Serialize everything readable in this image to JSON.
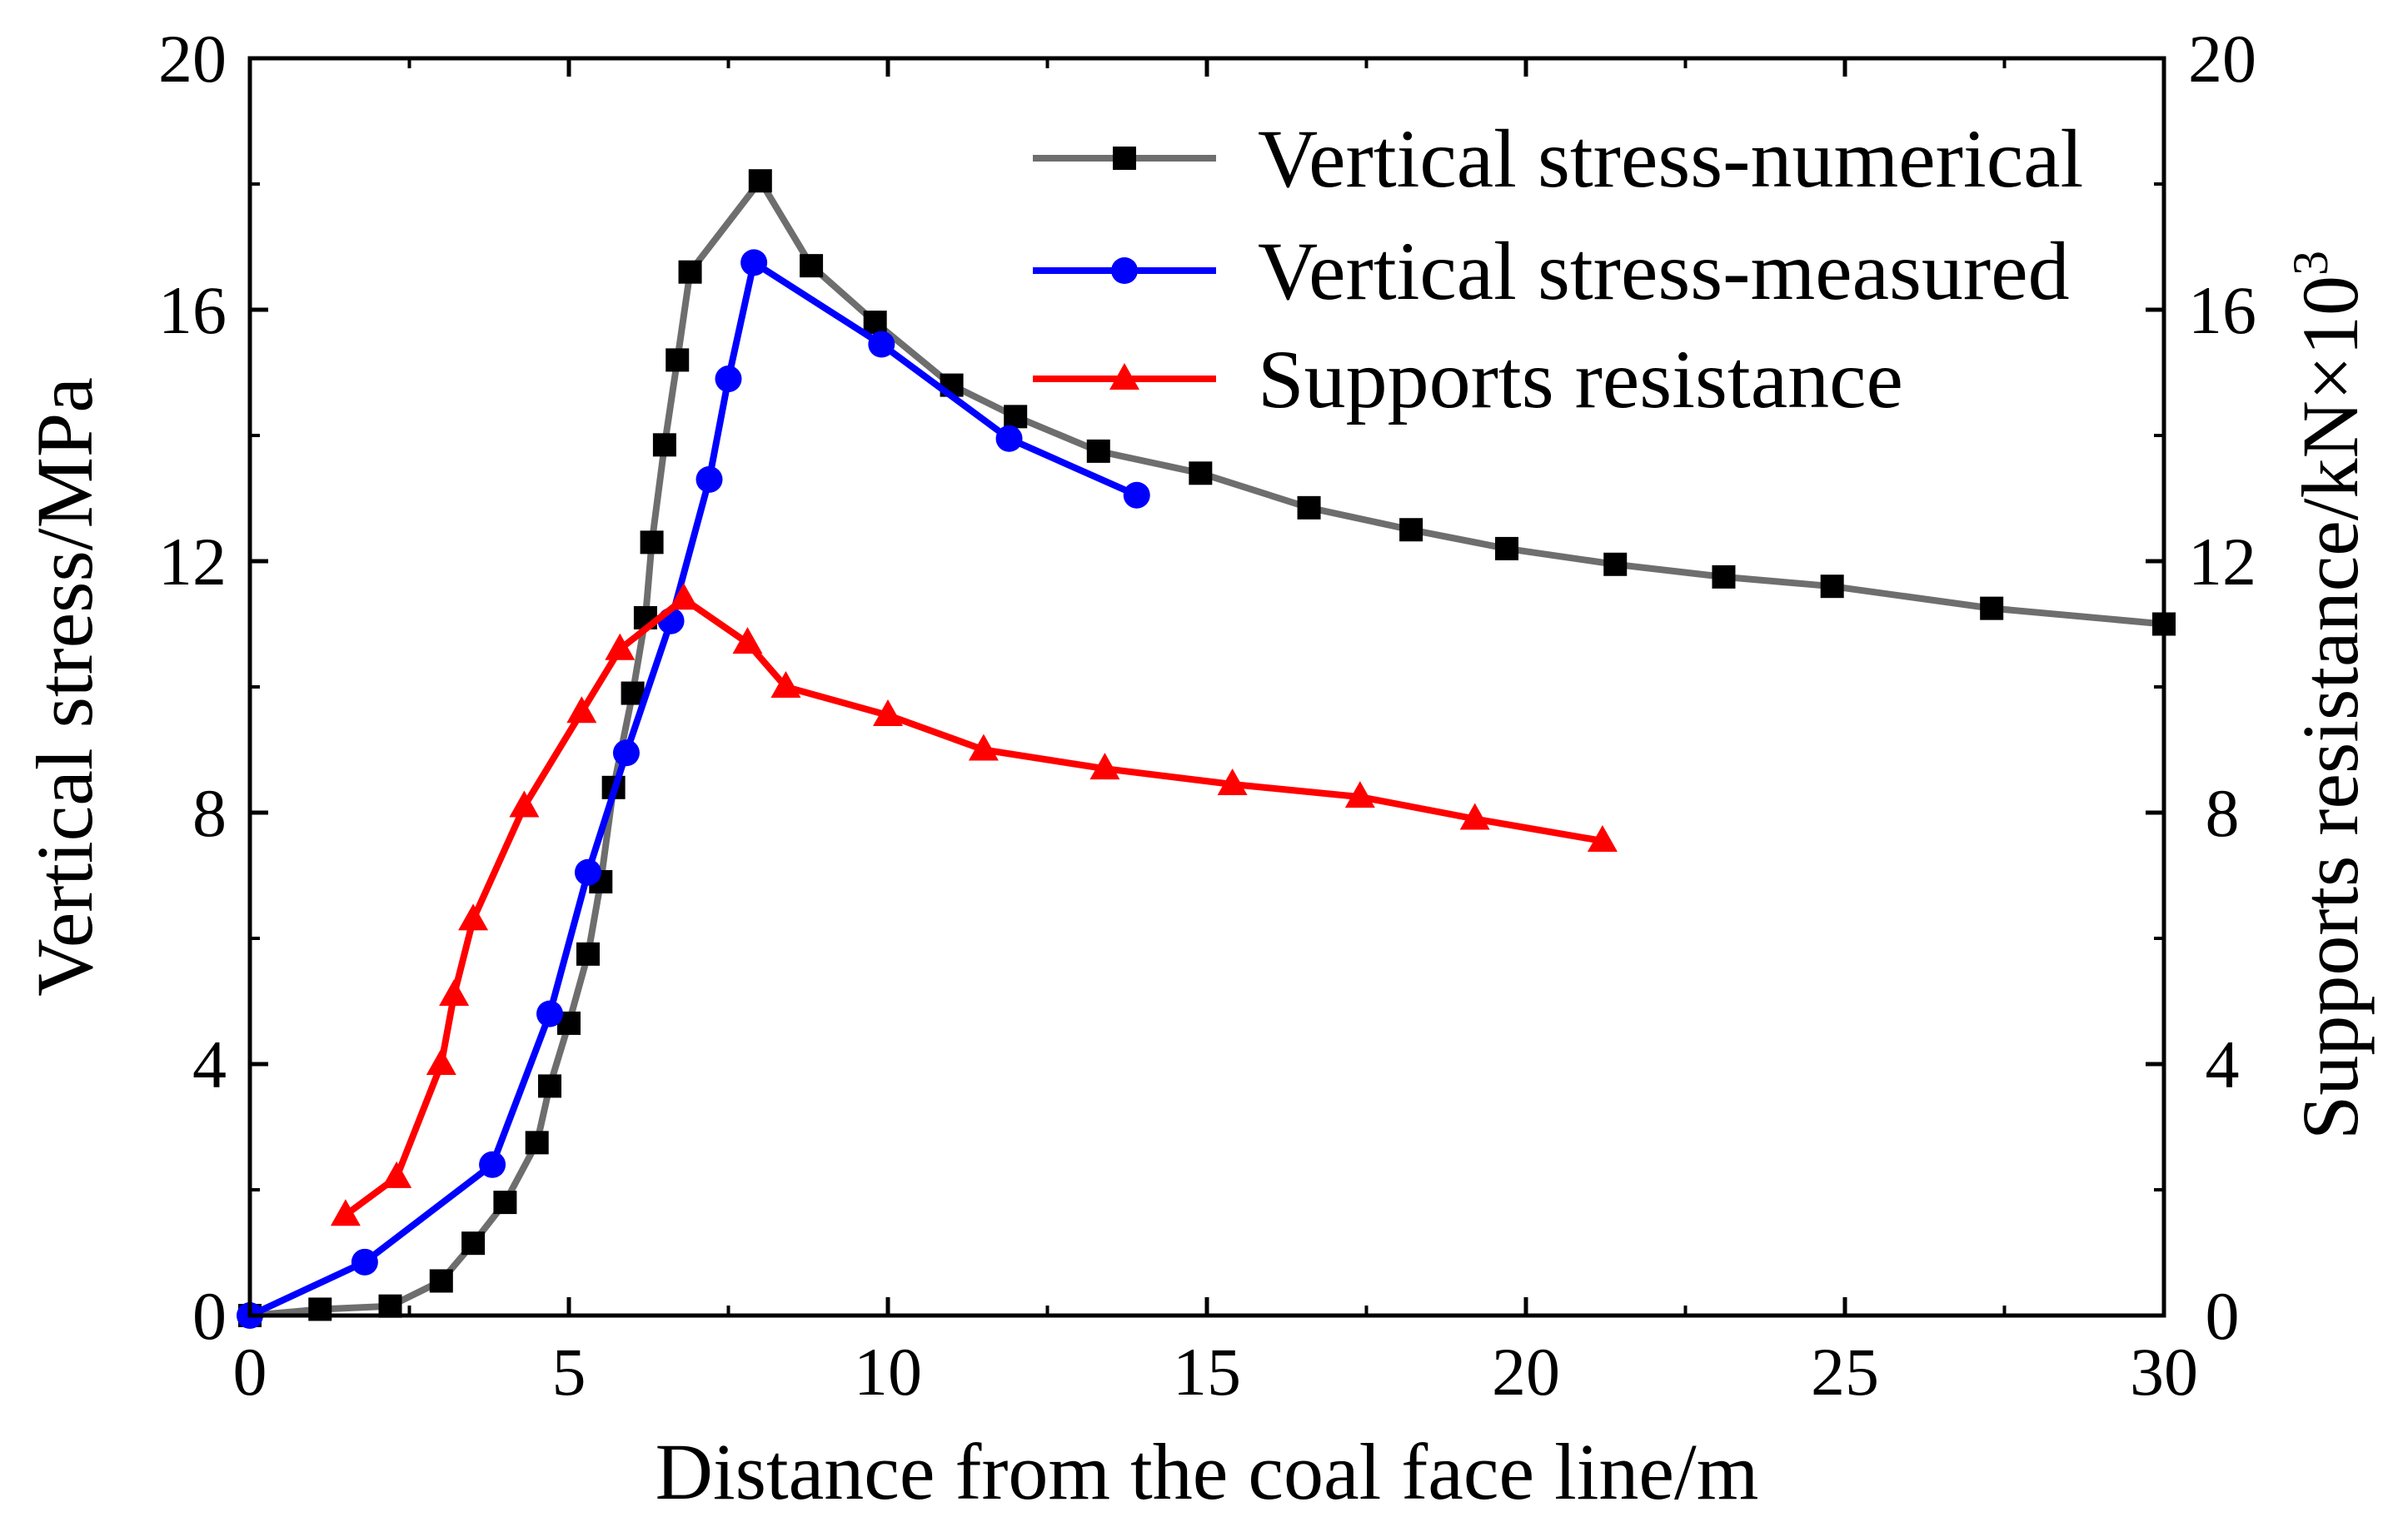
{
  "chart_data": {
    "type": "line",
    "title": "",
    "xlabel": "Distance from the coal face line/m",
    "ylabel": "Vertical stress/MPa",
    "y2label_main": "Supports resistance/kN×10",
    "y2label_sup": "3",
    "xlim": [
      0,
      30
    ],
    "ylim": [
      0,
      20
    ],
    "y2lim": [
      0,
      20
    ],
    "x_ticks": [
      0,
      5,
      10,
      15,
      20,
      25,
      30
    ],
    "y_ticks": [
      0,
      4,
      8,
      12,
      16,
      20
    ],
    "y2_ticks": [
      0,
      4,
      8,
      12,
      16,
      20
    ],
    "grid": false,
    "legend_position": "top-right",
    "series": [
      {
        "name": "Vertical stress-numerical",
        "axis": "left",
        "marker": "square",
        "color": "#6e6e6e",
        "marker_color": "#000000",
        "x": [
          0,
          1.1,
          2.2,
          3.0,
          3.5,
          4.0,
          4.5,
          4.7,
          5.0,
          5.3,
          5.5,
          5.7,
          6.0,
          6.2,
          6.3,
          6.5,
          6.7,
          6.9,
          8.0,
          8.8,
          9.8,
          11.0,
          12.0,
          13.3,
          14.9,
          16.6,
          18.2,
          19.7,
          21.4,
          23.1,
          24.8,
          27.3,
          30.0
        ],
        "values": [
          0,
          0.1,
          0.15,
          0.55,
          1.15,
          1.8,
          2.75,
          3.65,
          4.65,
          5.75,
          6.9,
          8.4,
          9.9,
          11.1,
          12.3,
          13.85,
          15.2,
          16.6,
          18.05,
          16.7,
          15.8,
          14.8,
          14.3,
          13.75,
          13.4,
          12.85,
          12.5,
          12.2,
          11.95,
          11.75,
          11.6,
          11.25,
          11.0
        ]
      },
      {
        "name": "Vertical stress-measured",
        "axis": "left",
        "marker": "circle",
        "color": "#0000ff",
        "marker_color": "#0000ff",
        "x": [
          0,
          1.8,
          3.8,
          4.7,
          5.3,
          5.9,
          6.6,
          7.2,
          7.5,
          7.9,
          9.9,
          11.9,
          13.9
        ],
        "values": [
          0,
          0.85,
          2.4,
          4.8,
          7.05,
          8.95,
          11.05,
          13.3,
          14.9,
          16.75,
          15.45,
          13.95,
          13.05
        ]
      },
      {
        "name": "Supports resistance",
        "axis": "right",
        "marker": "triangle",
        "color": "#ff0000",
        "marker_color": "#ff0000",
        "x": [
          1.5,
          2.3,
          3.0,
          3.2,
          3.5,
          4.3,
          5.2,
          5.8,
          6.8,
          7.8,
          8.4,
          10.0,
          11.5,
          13.4,
          15.4,
          17.4,
          19.2,
          21.2
        ],
        "values": [
          1.6,
          2.2,
          4.0,
          5.1,
          6.3,
          8.1,
          9.6,
          10.6,
          11.4,
          10.7,
          10.0,
          9.55,
          9.0,
          8.7,
          8.45,
          8.25,
          7.9,
          7.55
        ]
      }
    ]
  }
}
